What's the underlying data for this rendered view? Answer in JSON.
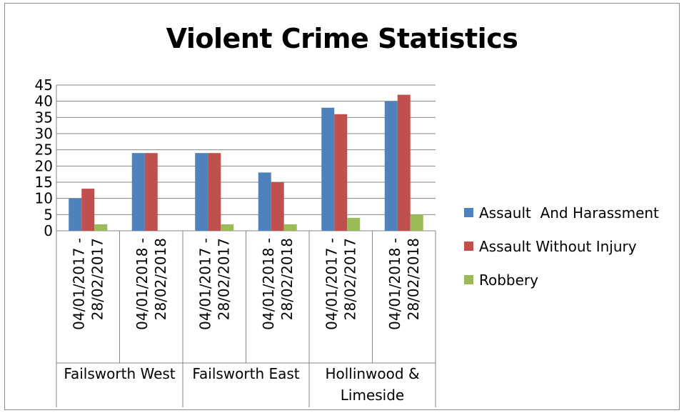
{
  "chart_data": {
    "type": "bar",
    "title": "Violent Crime Statistics",
    "xlabel": "",
    "ylabel": "",
    "ylim": [
      0,
      45
    ],
    "yticks": [
      "0",
      "5",
      "10",
      "15",
      "20",
      "25",
      "30",
      "35",
      "40",
      "45"
    ],
    "grid": true,
    "legend_position": "right",
    "groups": [
      {
        "label": "Failsworth West",
        "categories": [
          "04/01/2017 - 28/02/2017",
          "04/01/2018 - 28/02/2018"
        ]
      },
      {
        "label": "Failsworth East",
        "categories": [
          "04/01/2017 - 28/02/2017",
          "04/01/2018 - 28/02/2018"
        ]
      },
      {
        "label": "Hollinwood & Limeside",
        "categories": [
          "04/01/2017 - 28/02/2017",
          "04/01/2018 - 28/02/2018"
        ]
      }
    ],
    "category_lines": [
      [
        "04/01/2017 -",
        "28/02/2017"
      ],
      [
        "04/01/2018 -",
        "28/02/2018"
      ],
      [
        "04/01/2017 -",
        "28/02/2017"
      ],
      [
        "04/01/2018 -",
        "28/02/2018"
      ],
      [
        "04/01/2017 -",
        "28/02/2017"
      ],
      [
        "04/01/2018 -",
        "28/02/2018"
      ]
    ],
    "group_label_lines": [
      [
        "Failsworth West"
      ],
      [
        "Failsworth East"
      ],
      [
        "Hollinwood &",
        "Limeside"
      ]
    ],
    "series": [
      {
        "name": "Assault  And Harassment",
        "color": "#4f81bd",
        "values": [
          10,
          24,
          24,
          18,
          38,
          40
        ]
      },
      {
        "name": "Assault Without Injury",
        "color": "#c0504d",
        "values": [
          13,
          24,
          24,
          15,
          36,
          42
        ]
      },
      {
        "name": "Robbery",
        "color": "#9bbb59",
        "values": [
          2,
          0,
          2,
          2,
          4,
          5
        ]
      }
    ]
  }
}
